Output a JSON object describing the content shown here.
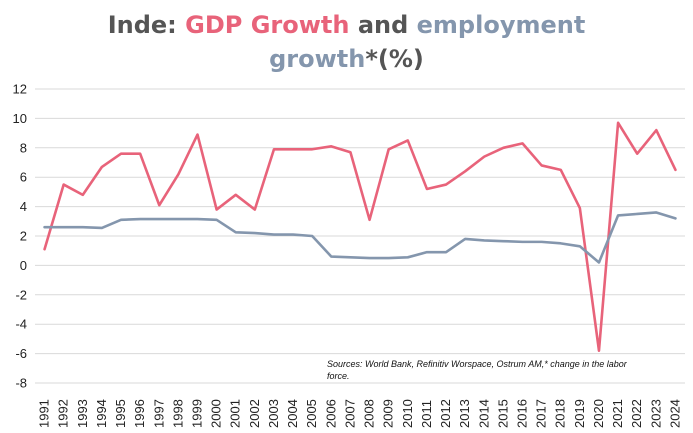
{
  "title_parts": {
    "prefix": "Inde:",
    "gdp": "GDP Growth",
    "and": "and",
    "emp": "employment",
    "emp2": "growth",
    "suffix": "*(%)"
  },
  "source_note": {
    "line1": "Sources: World Bank, Refinitiv Worspace, Ostrum AM,* change in the labor",
    "line2": "force."
  },
  "colors": {
    "gdp": "#E8637A",
    "employment": "#8496AD",
    "title_text": "#555555",
    "grid": "#d9d9d9"
  },
  "chart_data": {
    "type": "line",
    "title": "Inde: GDP Growth and employment growth*(%)",
    "xlabel": "",
    "ylabel": "",
    "ylim": [
      -8,
      12
    ],
    "yticks": [
      -8,
      -6,
      -4,
      -2,
      0,
      2,
      4,
      6,
      8,
      10,
      12
    ],
    "grid": true,
    "legend": "none (series identified by title colors)",
    "x": [
      "1991",
      "1992",
      "1993",
      "1994",
      "1995",
      "1996",
      "1997",
      "1998",
      "1999",
      "2000",
      "2001",
      "2002",
      "2003",
      "2004",
      "2005",
      "2006",
      "2007",
      "2008",
      "2009",
      "2010",
      "2011",
      "2012",
      "2013",
      "2014",
      "2015",
      "2016",
      "2017",
      "2018",
      "2019",
      "2020",
      "2021",
      "2022",
      "2023",
      "2024"
    ],
    "series": [
      {
        "name": "GDP Growth",
        "color": "#E8637A",
        "values": [
          1.1,
          5.5,
          4.8,
          6.7,
          7.6,
          7.6,
          4.1,
          6.2,
          8.9,
          3.8,
          4.8,
          3.8,
          7.9,
          7.9,
          7.9,
          8.1,
          7.7,
          3.1,
          7.9,
          8.5,
          5.2,
          5.5,
          6.4,
          7.4,
          8.0,
          8.3,
          6.8,
          6.5,
          3.9,
          -5.8,
          9.7,
          7.6,
          9.2,
          6.5
        ]
      },
      {
        "name": "employment growth",
        "color": "#8496AD",
        "values": [
          2.6,
          2.6,
          2.6,
          2.55,
          3.1,
          3.15,
          3.15,
          3.15,
          3.15,
          3.1,
          2.25,
          2.2,
          2.1,
          2.1,
          2.0,
          0.6,
          0.55,
          0.5,
          0.5,
          0.55,
          0.9,
          0.9,
          1.8,
          1.7,
          1.65,
          1.6,
          1.6,
          1.5,
          1.3,
          0.2,
          3.4,
          3.5,
          3.6,
          3.2
        ]
      }
    ]
  }
}
